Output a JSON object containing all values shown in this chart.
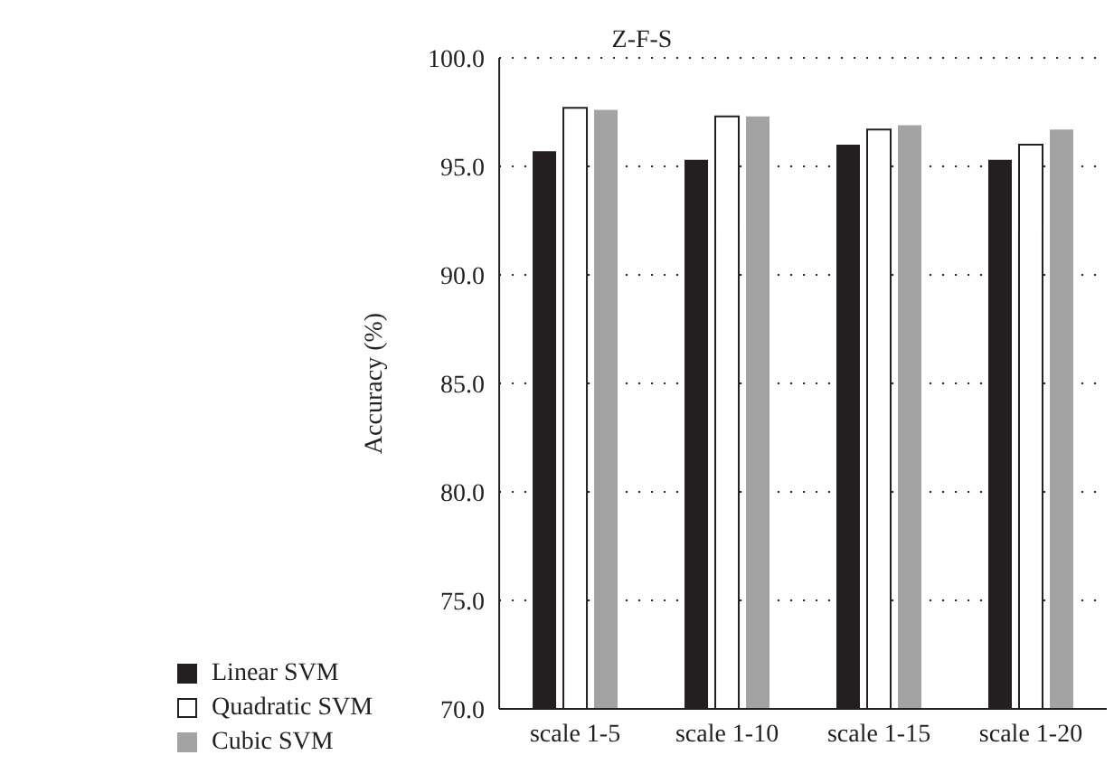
{
  "chart_data": {
    "type": "bar",
    "title": "Z-F-S",
    "ylabel": "Accuracy (%)",
    "categories": [
      "scale 1-5",
      "scale 1-10",
      "scale 1-15",
      "scale 1-20"
    ],
    "series": [
      {
        "name": "Linear SVM",
        "color": "#231f20",
        "values": [
          95.7,
          95.3,
          96.0,
          95.3
        ]
      },
      {
        "name": "Quadratic SVM",
        "color": "#ffffff",
        "values": [
          97.7,
          97.3,
          96.7,
          96.0
        ]
      },
      {
        "name": "Cubic SVM",
        "color": "#a3a3a3",
        "values": [
          97.6,
          97.3,
          96.9,
          96.7
        ]
      }
    ],
    "ylim": [
      70,
      100
    ],
    "yticks": [
      {
        "value": 70,
        "label": "70.0"
      },
      {
        "value": 75,
        "label": "75.0"
      },
      {
        "value": 80,
        "label": "80.0"
      },
      {
        "value": 85,
        "label": "85.0"
      },
      {
        "value": 90,
        "label": "90.0"
      },
      {
        "value": 95,
        "label": "95.0"
      },
      {
        "value": 100,
        "label": "100.0"
      }
    ],
    "grid": "y",
    "legend": "bottom left"
  }
}
